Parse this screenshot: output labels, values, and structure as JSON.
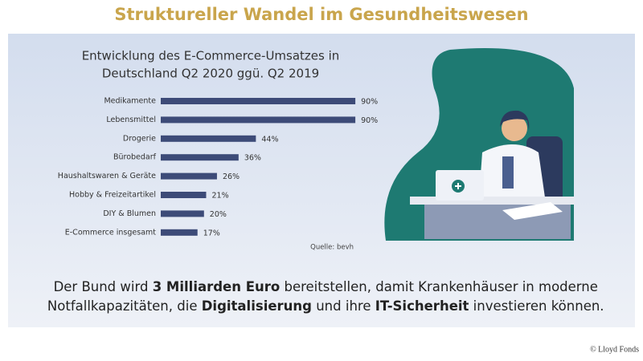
{
  "header": {
    "title": "Struktureller Wandel im Gesundheitswesen"
  },
  "chart_data": {
    "type": "bar",
    "orientation": "horizontal",
    "title_lines": [
      "Entwicklung des E-Commerce-Umsatzes in",
      "Deutschland Q2 2020 ggü. Q2 2019"
    ],
    "categories": [
      "Medikamente",
      "Lebensmittel",
      "Drogerie",
      "Bürobedarf",
      "Haushaltswaren & Geräte",
      "Hobby & Freizeitartikel",
      "DIY & Blumen",
      "E-Commerce insgesamt"
    ],
    "values": [
      90,
      90,
      44,
      36,
      26,
      21,
      20,
      17
    ],
    "value_labels": [
      "90%",
      "90%",
      "44%",
      "36%",
      "26%",
      "21%",
      "20%",
      "17%"
    ],
    "color": "#3d4b78",
    "source": "Quelle: bevh"
  },
  "body": {
    "lines": [
      [
        "Der Bund wird ",
        "3 Milliarden Euro",
        " bereitstellen, damit Krankenhäuser in moderne"
      ],
      [
        "Notfallkapazitäten, die ",
        "Digitalisierung",
        " und ihre ",
        "IT-Sicherheit",
        " investieren können."
      ]
    ]
  },
  "footer": {
    "copyright": "© Lloyd Fonds"
  }
}
